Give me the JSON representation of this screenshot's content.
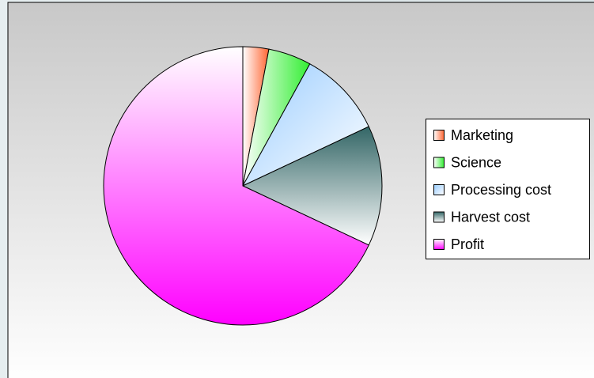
{
  "chart_data": {
    "type": "pie",
    "categories": [
      "Marketing",
      "Science",
      "Processing cost",
      "Harvest cost",
      "Profit"
    ],
    "values": [
      3,
      5,
      10,
      14,
      68
    ],
    "colors": [
      "#ff6633",
      "#33ee33",
      "#99ccff",
      "#336666",
      "#ff00ff"
    ],
    "legend": "right"
  }
}
